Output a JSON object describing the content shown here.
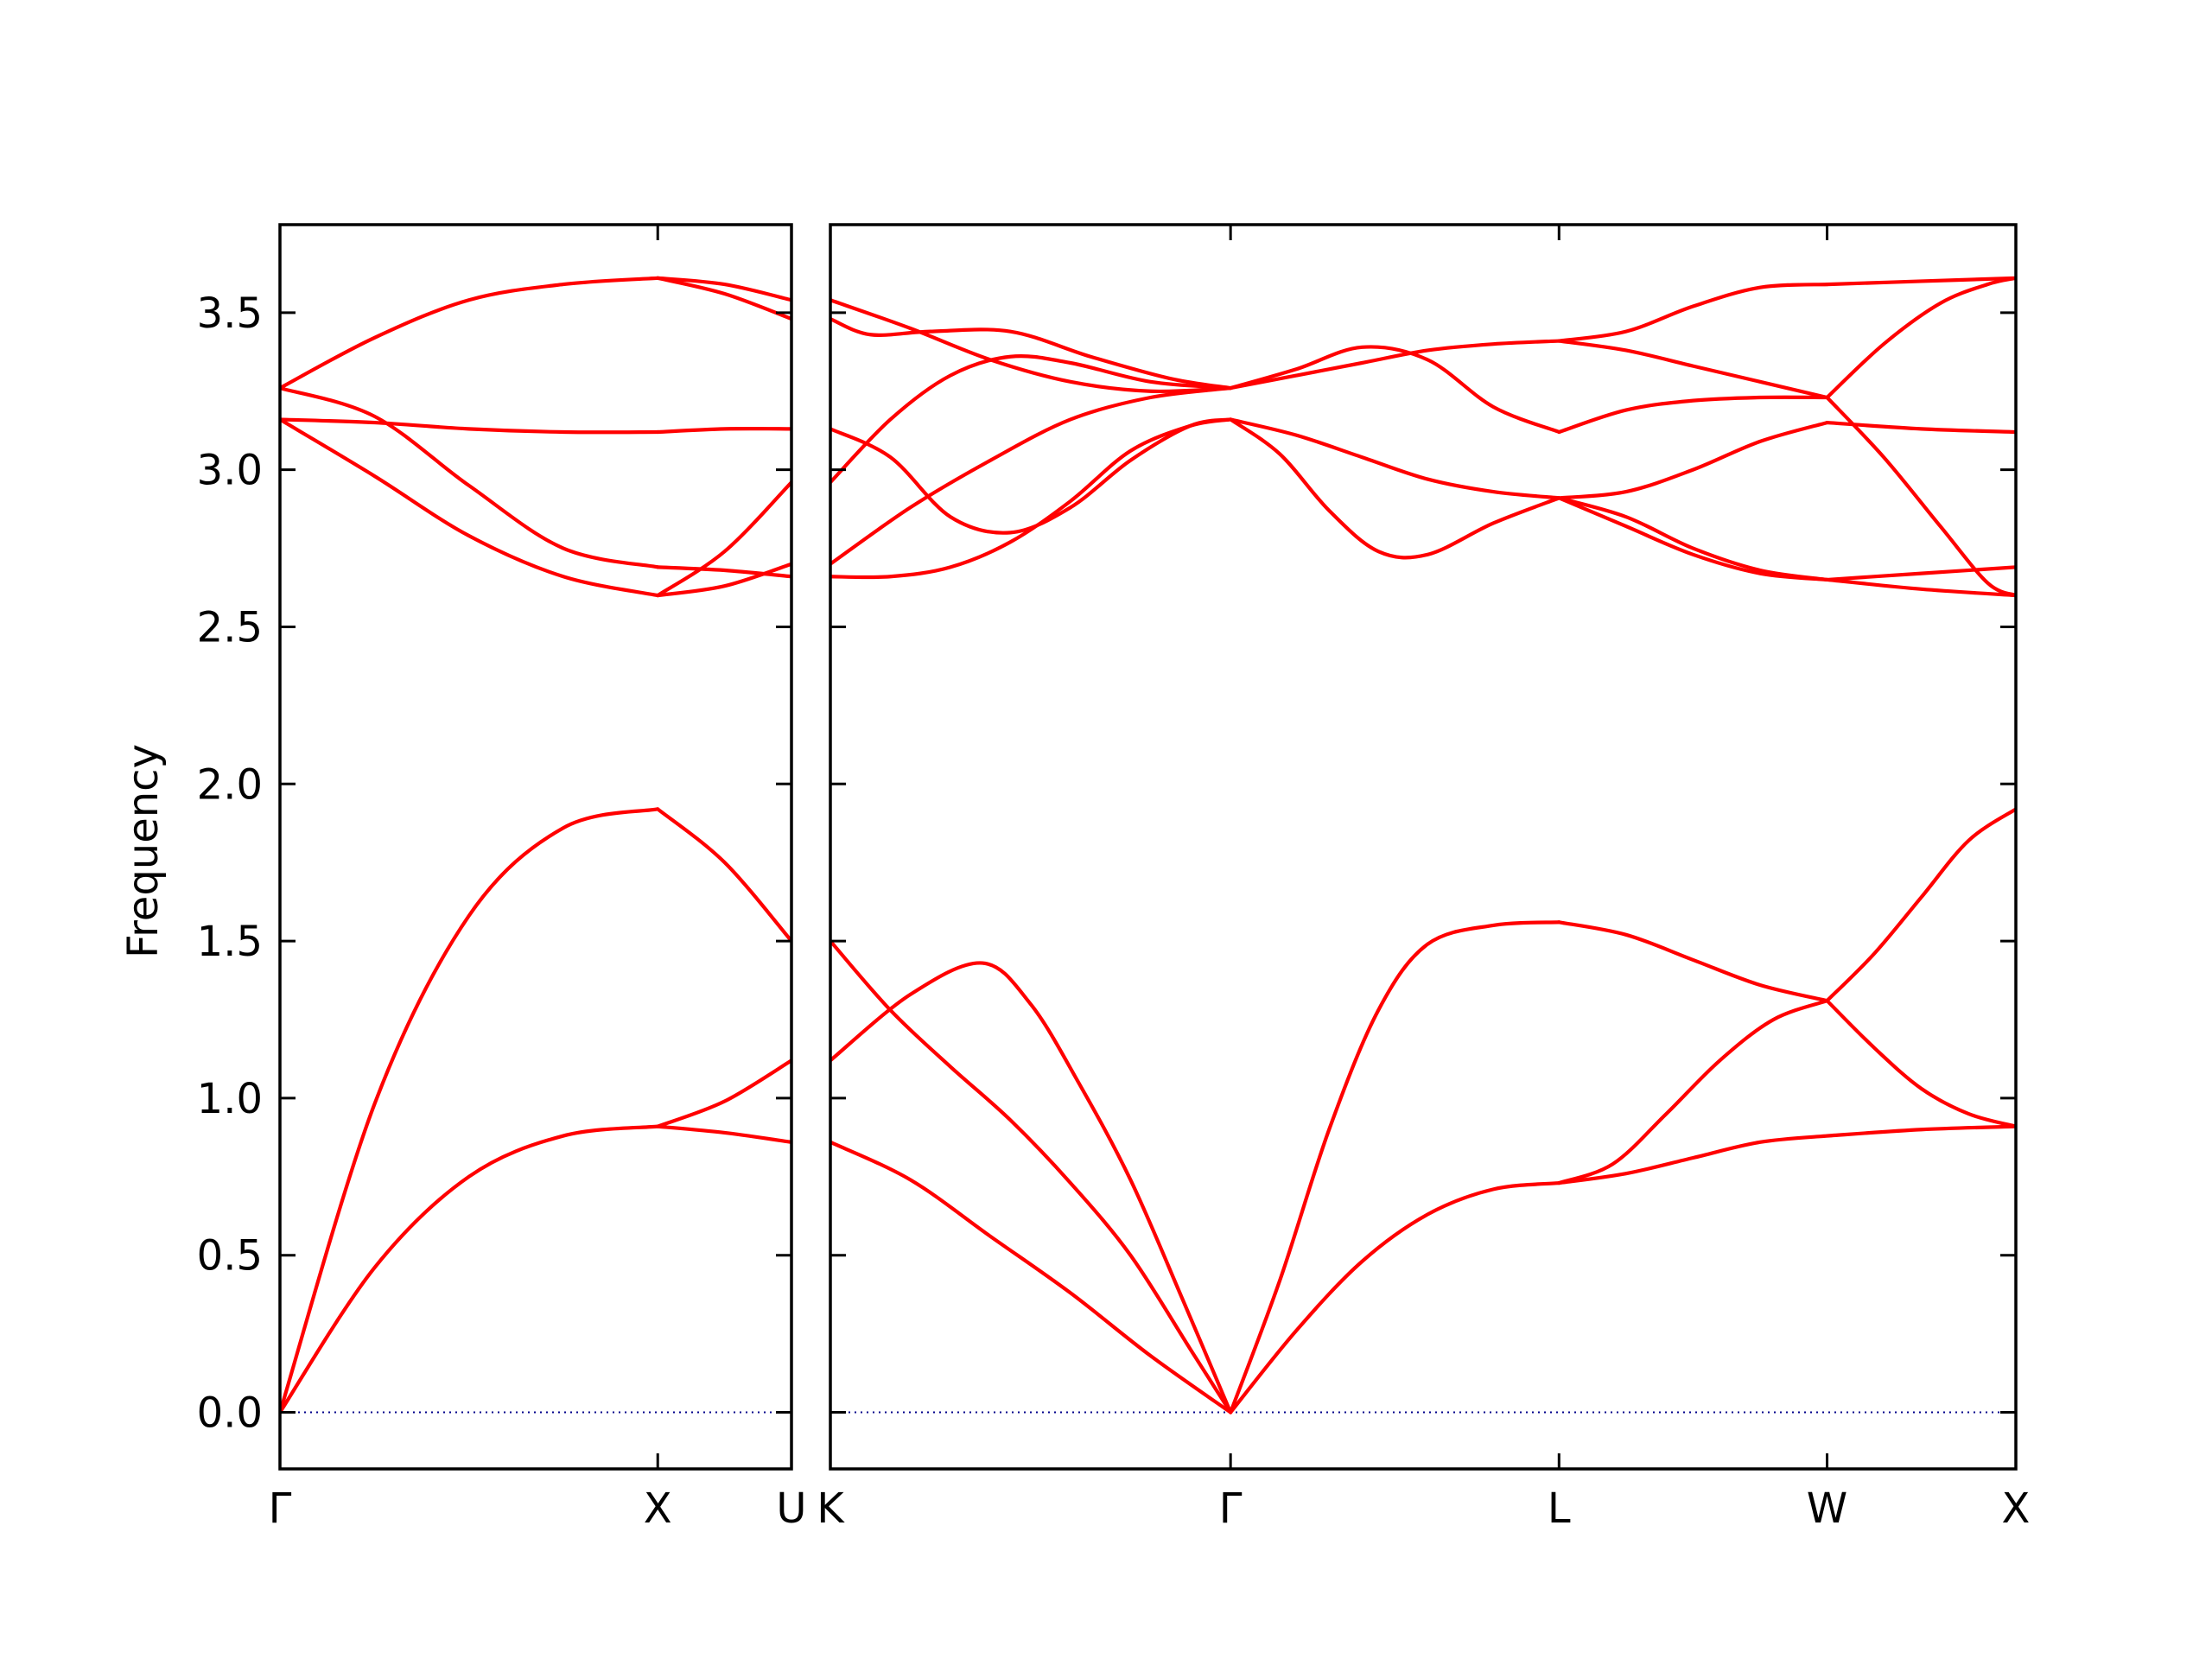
{
  "chart_data": {
    "type": "line",
    "ylabel": "Frequency",
    "ylim": [
      -0.18,
      3.78
    ],
    "yticks": [
      0.0,
      0.5,
      1.0,
      1.5,
      2.0,
      2.5,
      3.0,
      3.5
    ],
    "ytick_labels": [
      "0.0",
      "0.5",
      "1.0",
      "1.5",
      "2.0",
      "2.5",
      "3.0",
      "3.5"
    ],
    "grid": false,
    "legend": "none",
    "colors": {
      "band": "#ff0000",
      "zero_line": "#00008b",
      "frame": "#000000"
    },
    "segments": [
      {
        "name": "Γ–X",
        "x_range": [
          0.0,
          1.0
        ],
        "bands": [
          [
            [
              0,
              0
            ],
            [
              0.25,
              0.98
            ],
            [
              0.5,
              1.58
            ],
            [
              0.75,
              1.86
            ],
            [
              1,
              1.92
            ]
          ],
          [
            [
              0,
              0
            ],
            [
              0.25,
              0.46
            ],
            [
              0.5,
              0.75
            ],
            [
              0.75,
              0.88
            ],
            [
              1,
              0.91
            ]
          ],
          [
            [
              0,
              3.16
            ],
            [
              0.25,
              2.98
            ],
            [
              0.5,
              2.79
            ],
            [
              0.75,
              2.66
            ],
            [
              1,
              2.6
            ]
          ],
          [
            [
              0,
              3.26
            ],
            [
              0.25,
              3.17
            ],
            [
              0.5,
              2.95
            ],
            [
              0.75,
              2.75
            ],
            [
              1,
              2.69
            ]
          ],
          [
            [
              0,
              3.16
            ],
            [
              0.25,
              3.15
            ],
            [
              0.5,
              3.13
            ],
            [
              0.75,
              3.12
            ],
            [
              1,
              3.12
            ]
          ],
          [
            [
              0,
              3.26
            ],
            [
              0.25,
              3.42
            ],
            [
              0.5,
              3.54
            ],
            [
              0.75,
              3.59
            ],
            [
              1,
              3.61
            ]
          ]
        ]
      },
      {
        "name": "X–U",
        "x_range": [
          1.0,
          1.354
        ],
        "bands": [
          [
            [
              0,
              1.92
            ],
            [
              0.5,
              1.75
            ],
            [
              1,
              1.5
            ]
          ],
          [
            [
              0,
              0.91
            ],
            [
              0.5,
              0.99
            ],
            [
              1,
              1.12
            ]
          ],
          [
            [
              0,
              0.91
            ],
            [
              0.5,
              0.89
            ],
            [
              1,
              0.86
            ]
          ],
          [
            [
              0,
              2.6
            ],
            [
              0.5,
              2.74
            ],
            [
              1,
              2.96
            ]
          ],
          [
            [
              0,
              2.6
            ],
            [
              0.5,
              2.63
            ],
            [
              1,
              2.7
            ]
          ],
          [
            [
              0,
              2.69
            ],
            [
              0.5,
              2.68
            ],
            [
              1,
              2.66
            ]
          ],
          [
            [
              0,
              3.12
            ],
            [
              0.5,
              3.13
            ],
            [
              1,
              3.13
            ]
          ],
          [
            [
              0,
              3.61
            ],
            [
              0.5,
              3.56
            ],
            [
              1,
              3.48
            ]
          ],
          [
            [
              0,
              3.61
            ],
            [
              0.5,
              3.59
            ],
            [
              1,
              3.54
            ]
          ]
        ]
      },
      {
        "name": "K–Γ",
        "x_range": [
          1.43,
          2.49
        ],
        "bands": [
          [
            [
              0,
              1.5
            ],
            [
              0.15,
              1.28
            ],
            [
              0.3,
              1.1
            ],
            [
              0.45,
              0.93
            ],
            [
              0.6,
              0.73
            ],
            [
              0.75,
              0.5
            ],
            [
              0.9,
              0.2
            ],
            [
              1,
              0
            ]
          ],
          [
            [
              0,
              1.12
            ],
            [
              0.2,
              1.33
            ],
            [
              0.38,
              1.43
            ],
            [
              0.5,
              1.3
            ],
            [
              0.62,
              1.05
            ],
            [
              0.75,
              0.74
            ],
            [
              0.88,
              0.36
            ],
            [
              1,
              0
            ]
          ],
          [
            [
              0,
              0.86
            ],
            [
              0.2,
              0.74
            ],
            [
              0.4,
              0.56
            ],
            [
              0.6,
              0.38
            ],
            [
              0.8,
              0.18
            ],
            [
              1,
              0
            ]
          ],
          [
            [
              0,
              2.66
            ],
            [
              0.15,
              2.66
            ],
            [
              0.3,
              2.69
            ],
            [
              0.45,
              2.77
            ],
            [
              0.6,
              2.9
            ],
            [
              0.75,
              3.06
            ],
            [
              0.9,
              3.14
            ],
            [
              1,
              3.16
            ]
          ],
          [
            [
              0,
              2.7
            ],
            [
              0.2,
              2.88
            ],
            [
              0.4,
              3.03
            ],
            [
              0.6,
              3.16
            ],
            [
              0.8,
              3.23
            ],
            [
              1,
              3.26
            ]
          ],
          [
            [
              0,
              2.96
            ],
            [
              0.15,
              3.16
            ],
            [
              0.3,
              3.3
            ],
            [
              0.45,
              3.36
            ],
            [
              0.6,
              3.34
            ],
            [
              0.8,
              3.28
            ],
            [
              1,
              3.26
            ]
          ],
          [
            [
              0,
              3.13
            ],
            [
              0.15,
              3.04
            ],
            [
              0.3,
              2.85
            ],
            [
              0.45,
              2.8
            ],
            [
              0.6,
              2.88
            ],
            [
              0.75,
              3.03
            ],
            [
              0.9,
              3.14
            ],
            [
              1,
              3.16
            ]
          ],
          [
            [
              0,
              3.48
            ],
            [
              0.1,
              3.43
            ],
            [
              0.25,
              3.44
            ],
            [
              0.45,
              3.44
            ],
            [
              0.65,
              3.36
            ],
            [
              0.85,
              3.29
            ],
            [
              1,
              3.26
            ]
          ],
          [
            [
              0,
              3.54
            ],
            [
              0.2,
              3.45
            ],
            [
              0.4,
              3.35
            ],
            [
              0.6,
              3.28
            ],
            [
              0.8,
              3.25
            ],
            [
              1,
              3.26
            ]
          ]
        ]
      },
      {
        "name": "Γ–L",
        "x_range": [
          2.49,
          3.36
        ],
        "bands": [
          [
            [
              0,
              0
            ],
            [
              0.15,
              0.42
            ],
            [
              0.3,
              0.9
            ],
            [
              0.45,
              1.28
            ],
            [
              0.6,
              1.49
            ],
            [
              0.8,
              1.55
            ],
            [
              1,
              1.56
            ]
          ],
          [
            [
              0,
              0
            ],
            [
              0.2,
              0.26
            ],
            [
              0.4,
              0.48
            ],
            [
              0.6,
              0.63
            ],
            [
              0.8,
              0.71
            ],
            [
              1,
              0.73
            ]
          ],
          [
            [
              0,
              3.16
            ],
            [
              0.15,
              3.05
            ],
            [
              0.3,
              2.87
            ],
            [
              0.45,
              2.74
            ],
            [
              0.6,
              2.73
            ],
            [
              0.8,
              2.83
            ],
            [
              1,
              2.91
            ]
          ],
          [
            [
              0,
              3.16
            ],
            [
              0.2,
              3.11
            ],
            [
              0.4,
              3.04
            ],
            [
              0.6,
              2.97
            ],
            [
              0.8,
              2.93
            ],
            [
              1,
              2.91
            ]
          ],
          [
            [
              0,
              3.26
            ],
            [
              0.2,
              3.32
            ],
            [
              0.4,
              3.39
            ],
            [
              0.6,
              3.35
            ],
            [
              0.8,
              3.2
            ],
            [
              1,
              3.12
            ]
          ],
          [
            [
              0,
              3.26
            ],
            [
              0.2,
              3.3
            ],
            [
              0.4,
              3.34
            ],
            [
              0.6,
              3.38
            ],
            [
              0.8,
              3.4
            ],
            [
              1,
              3.41
            ]
          ]
        ]
      },
      {
        "name": "L–W",
        "x_range": [
          3.36,
          4.07
        ],
        "bands": [
          [
            [
              0,
              1.56
            ],
            [
              0.25,
              1.52
            ],
            [
              0.5,
              1.44
            ],
            [
              0.75,
              1.36
            ],
            [
              1,
              1.31
            ]
          ],
          [
            [
              0,
              0.73
            ],
            [
              0.2,
              0.79
            ],
            [
              0.4,
              0.95
            ],
            [
              0.6,
              1.12
            ],
            [
              0.8,
              1.25
            ],
            [
              1,
              1.31
            ]
          ],
          [
            [
              0,
              0.73
            ],
            [
              0.25,
              0.76
            ],
            [
              0.5,
              0.81
            ],
            [
              0.75,
              0.86
            ],
            [
              1,
              0.88
            ]
          ],
          [
            [
              0,
              2.91
            ],
            [
              0.25,
              2.85
            ],
            [
              0.5,
              2.75
            ],
            [
              0.75,
              2.68
            ],
            [
              1,
              2.65
            ]
          ],
          [
            [
              0,
              2.91
            ],
            [
              0.25,
              2.82
            ],
            [
              0.5,
              2.73
            ],
            [
              0.75,
              2.67
            ],
            [
              1,
              2.65
            ]
          ],
          [
            [
              0,
              2.91
            ],
            [
              0.25,
              2.93
            ],
            [
              0.5,
              3.0
            ],
            [
              0.75,
              3.09
            ],
            [
              1,
              3.15
            ]
          ],
          [
            [
              0,
              3.12
            ],
            [
              0.25,
              3.19
            ],
            [
              0.5,
              3.22
            ],
            [
              0.75,
              3.23
            ],
            [
              1,
              3.23
            ]
          ],
          [
            [
              0,
              3.41
            ],
            [
              0.25,
              3.38
            ],
            [
              0.5,
              3.33
            ],
            [
              0.75,
              3.28
            ],
            [
              1,
              3.23
            ]
          ],
          [
            [
              0,
              3.41
            ],
            [
              0.25,
              3.44
            ],
            [
              0.5,
              3.52
            ],
            [
              0.75,
              3.58
            ],
            [
              1,
              3.59
            ]
          ]
        ]
      },
      {
        "name": "W–X",
        "x_range": [
          4.07,
          4.57
        ],
        "bands": [
          [
            [
              0,
              1.31
            ],
            [
              0.25,
              1.46
            ],
            [
              0.5,
              1.64
            ],
            [
              0.75,
              1.82
            ],
            [
              1,
              1.92
            ]
          ],
          [
            [
              0,
              1.31
            ],
            [
              0.25,
              1.16
            ],
            [
              0.5,
              1.03
            ],
            [
              0.75,
              0.95
            ],
            [
              1,
              0.91
            ]
          ],
          [
            [
              0,
              0.88
            ],
            [
              0.5,
              0.9
            ],
            [
              1,
              0.91
            ]
          ],
          [
            [
              0,
              2.65
            ],
            [
              0.5,
              2.67
            ],
            [
              1,
              2.69
            ]
          ],
          [
            [
              0,
              2.65
            ],
            [
              0.5,
              2.62
            ],
            [
              1,
              2.6
            ]
          ],
          [
            [
              0,
              3.15
            ],
            [
              0.5,
              3.13
            ],
            [
              1,
              3.12
            ]
          ],
          [
            [
              0,
              3.23
            ],
            [
              0.3,
              3.04
            ],
            [
              0.6,
              2.82
            ],
            [
              0.85,
              2.64
            ],
            [
              1,
              2.6
            ]
          ],
          [
            [
              0,
              3.23
            ],
            [
              0.3,
              3.4
            ],
            [
              0.6,
              3.53
            ],
            [
              0.85,
              3.59
            ],
            [
              1,
              3.61
            ]
          ],
          [
            [
              0,
              3.59
            ],
            [
              0.5,
              3.6
            ],
            [
              1,
              3.61
            ]
          ]
        ]
      }
    ],
    "panels": [
      {
        "name": "left",
        "x_range": [
          0.0,
          1.354
        ],
        "xticks": [
          {
            "x": 0.0,
            "label": "Γ"
          },
          {
            "x": 1.0,
            "label": "X"
          },
          {
            "x": 1.354,
            "label": "U"
          }
        ]
      },
      {
        "name": "right",
        "x_range": [
          1.43,
          4.57
        ],
        "xticks": [
          {
            "x": 1.43,
            "label": "K"
          },
          {
            "x": 2.49,
            "label": "Γ"
          },
          {
            "x": 3.36,
            "label": "L"
          },
          {
            "x": 4.07,
            "label": "W"
          },
          {
            "x": 4.57,
            "label": "X"
          }
        ]
      }
    ]
  }
}
